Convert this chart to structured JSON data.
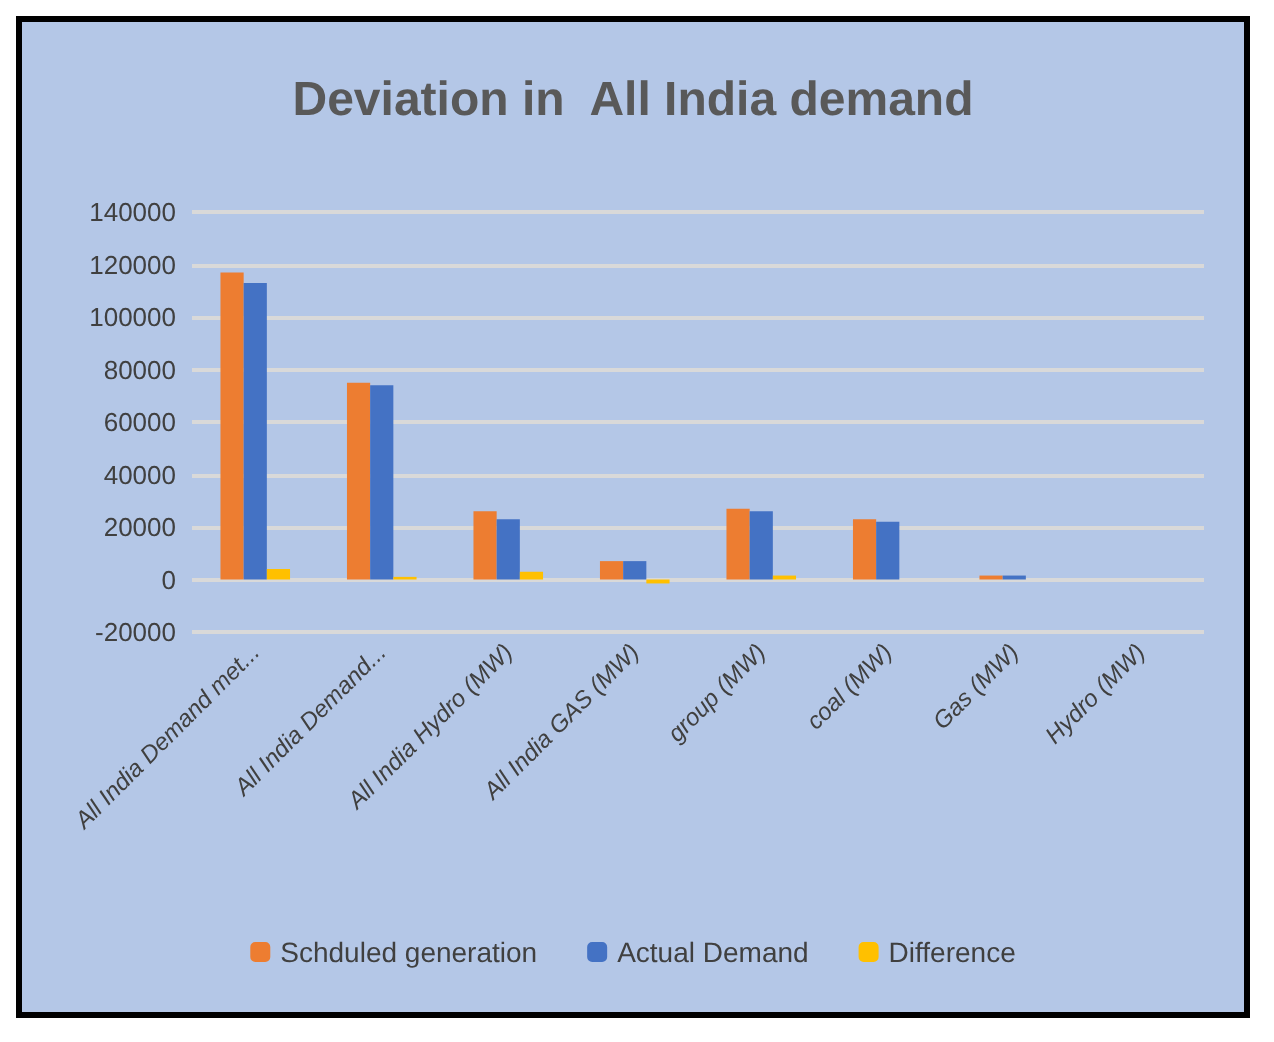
{
  "chart_data": {
    "type": "bar",
    "title": "Deviation in  All India demand",
    "categories": [
      "All India Demand met...",
      "All India Demand...",
      "All India Hydro (MW)",
      "All India GAS (MW)",
      "group (MW)",
      "coal (MW)",
      "Gas (MW)",
      "Hydro (MW)"
    ],
    "series": [
      {
        "name": "Schduled generation",
        "color": "#ed7d31",
        "values": [
          117000,
          75000,
          26000,
          7000,
          27000,
          23000,
          1500,
          0
        ]
      },
      {
        "name": "Actual Demand",
        "color": "#4472c4",
        "values": [
          113000,
          74000,
          23000,
          7000,
          26000,
          22000,
          1500,
          0
        ]
      },
      {
        "name": "Difference",
        "color": "#ffc000",
        "values": [
          4000,
          1000,
          3000,
          -1500,
          1500,
          0,
          0,
          0
        ]
      }
    ],
    "ylim": [
      -20000,
      140000
    ],
    "yticks": [
      -20000,
      0,
      20000,
      40000,
      60000,
      80000,
      100000,
      120000,
      140000
    ],
    "grid": "y",
    "legend": "bottom"
  }
}
